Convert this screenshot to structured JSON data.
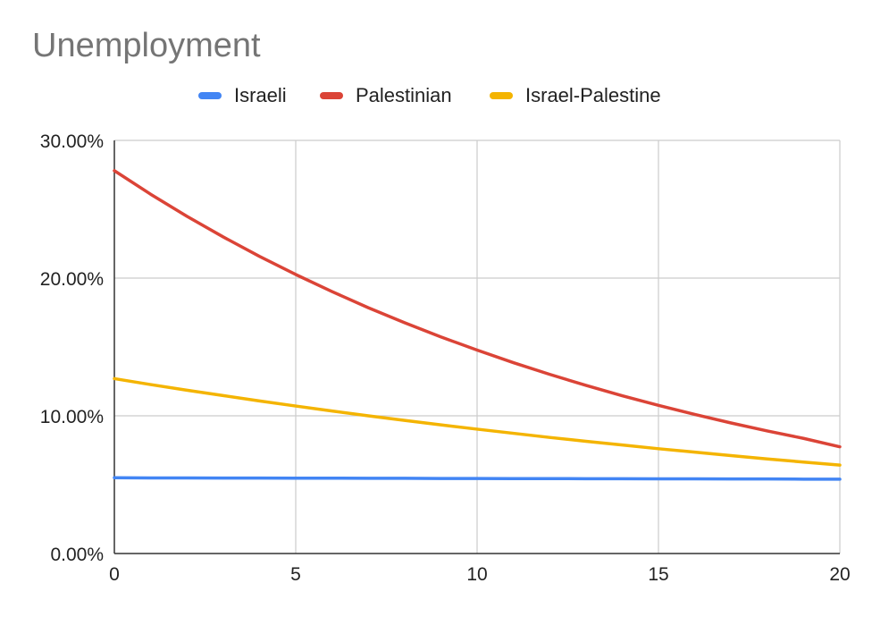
{
  "chart_data": {
    "type": "line",
    "title": "Unemployment",
    "xlabel": "",
    "ylabel": "",
    "x": [
      0,
      1,
      2,
      3,
      4,
      5,
      6,
      7,
      8,
      9,
      10,
      11,
      12,
      13,
      14,
      15,
      16,
      17,
      18,
      19,
      20
    ],
    "xlim": [
      0,
      20
    ],
    "ylim": [
      0,
      0.3
    ],
    "x_ticks": [
      0,
      5,
      10,
      15,
      20
    ],
    "x_tick_labels": [
      "0",
      "5",
      "10",
      "15",
      "20"
    ],
    "y_ticks": [
      0,
      0.1,
      0.2,
      0.3
    ],
    "y_tick_labels": [
      "0.00%",
      "10.00%",
      "20.00%",
      "30.00%"
    ],
    "grid": true,
    "legend_position": "top",
    "series": [
      {
        "name": "Israeli",
        "color": "#4285F4",
        "values": [
          0.055,
          0.0549,
          0.0549,
          0.0548,
          0.0548,
          0.0547,
          0.0547,
          0.0546,
          0.0546,
          0.0545,
          0.0545,
          0.0544,
          0.0544,
          0.0543,
          0.0543,
          0.0542,
          0.0542,
          0.0541,
          0.0541,
          0.054,
          0.054
        ]
      },
      {
        "name": "Palestinian",
        "color": "#DB4437",
        "values": [
          0.278,
          0.2609,
          0.2449,
          0.2299,
          0.2158,
          0.2026,
          0.1902,
          0.1785,
          0.1676,
          0.1573,
          0.1477,
          0.1386,
          0.1301,
          0.1221,
          0.1146,
          0.1076,
          0.101,
          0.0948,
          0.089,
          0.0836,
          0.0775
        ]
      },
      {
        "name": "Israel-Palestine",
        "color": "#F4B400",
        "values": [
          0.127,
          0.1227,
          0.1186,
          0.1147,
          0.1108,
          0.1071,
          0.1035,
          0.1,
          0.0967,
          0.0934,
          0.0903,
          0.0873,
          0.0843,
          0.0815,
          0.0788,
          0.0761,
          0.0736,
          0.0711,
          0.0687,
          0.0664,
          0.0642
        ]
      }
    ]
  }
}
